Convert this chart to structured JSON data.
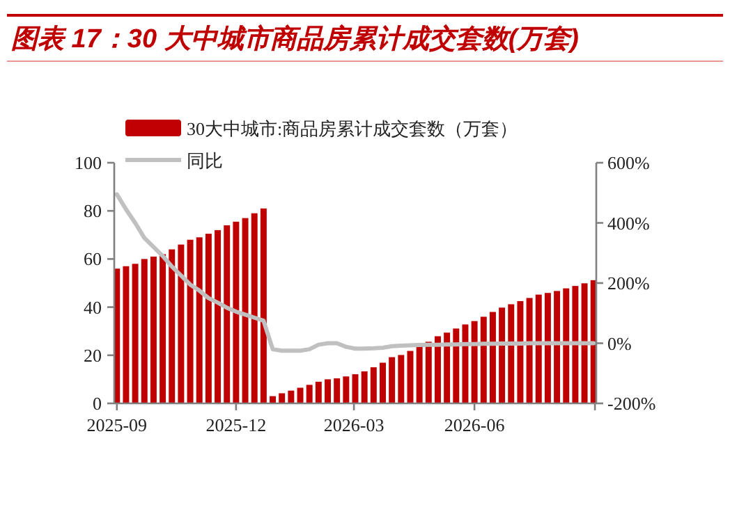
{
  "chart_data": {
    "type": "bar",
    "title": "图表 17：30 大中城市商品房累计成交套数(万套)",
    "x": [
      "2025-09-01",
      "2025-09-08",
      "2025-09-15",
      "2025-09-22",
      "2025-09-29",
      "2025-10-06",
      "2025-10-13",
      "2025-10-20",
      "2025-10-27",
      "2025-11-03",
      "2025-11-10",
      "2025-11-17",
      "2025-11-24",
      "2025-12-01",
      "2025-12-08",
      "2025-12-15",
      "2025-12-22",
      "2025-12-29",
      "2026-01-05",
      "2026-01-12",
      "2026-01-19",
      "2026-01-26",
      "2026-02-02",
      "2026-02-09",
      "2026-02-16",
      "2026-02-23",
      "2026-03-02",
      "2026-03-09",
      "2026-03-16",
      "2026-03-23",
      "2026-03-30",
      "2026-04-06",
      "2026-04-13",
      "2026-04-20",
      "2026-04-27",
      "2026-05-04",
      "2026-05-11",
      "2026-05-18",
      "2026-05-25",
      "2026-06-01",
      "2026-06-08",
      "2026-06-15",
      "2026-06-22",
      "2026-06-29",
      "2026-07-06",
      "2026-07-13",
      "2026-07-20",
      "2026-07-27",
      "2026-08-03",
      "2026-08-10",
      "2026-08-17",
      "2026-08-24",
      "2026-08-31"
    ],
    "series": [
      {
        "name": "30大中城市:商品房累计成交套数（万套）",
        "color": "#c00000",
        "values": [
          56,
          57,
          58,
          60,
          61,
          62,
          64,
          66,
          68,
          69,
          70.5,
          72,
          74,
          75.5,
          77,
          79,
          81,
          3,
          4.2,
          5.3,
          6.5,
          7.7,
          9,
          10,
          10.4,
          11.2,
          12.1,
          13.3,
          15,
          16.9,
          19.2,
          20.1,
          21.8,
          23.7,
          25.6,
          27.9,
          29.4,
          31.1,
          32.8,
          34.2,
          36,
          38,
          39.8,
          41.2,
          42.5,
          43.8,
          45.2,
          45.9,
          46.7,
          47.8,
          48.8,
          49.9,
          51.2
        ]
      },
      {
        "name": "同比",
        "type": "line",
        "axis": "y2",
        "color": "#c0c0c0",
        "values": [
          495,
          445,
          400,
          350,
          320,
          290,
          255,
          225,
          195,
          175,
          150,
          135,
          118,
          105,
          95,
          85,
          75,
          -20,
          -25,
          -25,
          -25,
          -20,
          -5,
          0,
          0,
          -12,
          -18,
          -18,
          -17,
          -15,
          -10,
          -8,
          -7,
          -6,
          -5,
          -5,
          -4,
          -4,
          -3,
          -3,
          -2,
          -2,
          -1,
          -1,
          -1,
          0,
          0,
          0,
          0,
          0,
          0,
          0,
          0
        ]
      }
    ],
    "xlim": [
      "2025-08-30",
      "2026-09-02"
    ],
    "xticks": [
      "2025-09",
      "2025-12",
      "2026-03",
      "2026-06",
      {
        "value": "2026-09",
        "label": null
      }
    ],
    "ylim": [
      0,
      100
    ],
    "yticks": [
      0,
      20,
      40,
      60,
      80,
      100
    ],
    "y2lim": [
      -200,
      600
    ],
    "y2ticks": [
      {
        "value": -200,
        "label": "-200%"
      },
      {
        "value": 0,
        "label": "0%"
      },
      {
        "value": 200,
        "label": "200%"
      },
      {
        "value": 400,
        "label": "400%"
      },
      {
        "value": 600,
        "label": "600%"
      }
    ],
    "legend": "top"
  }
}
